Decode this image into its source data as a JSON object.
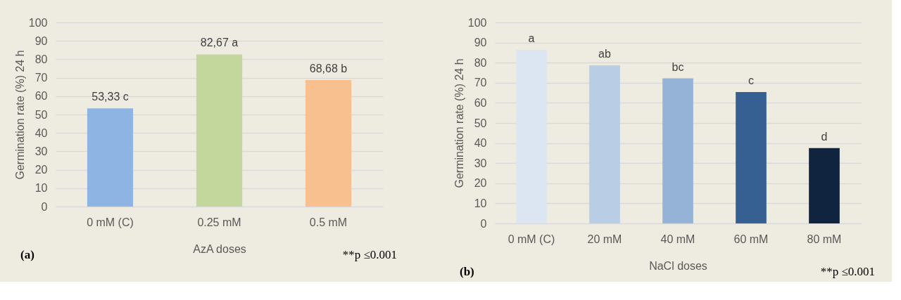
{
  "chart_data": [
    {
      "type": "bar",
      "categories": [
        "0 mM (C)",
        "0.25 mM",
        "0.5 mM"
      ],
      "values": [
        53.33,
        82.67,
        68.68
      ],
      "colors": [
        "#8eb4e3",
        "#c3d69b",
        "#f8bf8f"
      ],
      "value_labels": [
        "53,33 c",
        "82,67 a",
        "68,68 b"
      ],
      "xlabel": "AzA doses",
      "ylabel": "Germination rate (%) 24 h",
      "ylim": [
        0,
        100
      ],
      "yticks": [
        0,
        10,
        20,
        30,
        40,
        50,
        60,
        70,
        80,
        90,
        100
      ],
      "grid": "y",
      "annotations": [
        "(a)",
        "**p ≤0.001"
      ]
    },
    {
      "type": "bar",
      "categories": [
        "0 mM (C)",
        "20 mM",
        "40 mM",
        "60 mM",
        "80 mM"
      ],
      "values": [
        86.4,
        78.7,
        72.2,
        65.4,
        37.5
      ],
      "colors": [
        "#dce6f2",
        "#b9cde5",
        "#95b3d7",
        "#376092",
        "#10243f"
      ],
      "value_labels": [
        "a",
        "ab",
        "bc",
        "c",
        "d"
      ],
      "xlabel": "NaCl doses",
      "ylabel": "Germination rate (%) 24 h",
      "ylim": [
        0,
        100
      ],
      "yticks": [
        0,
        10,
        20,
        30,
        40,
        50,
        60,
        70,
        80,
        90,
        100
      ],
      "grid": "y",
      "annotations": [
        "(b)",
        "**p ≤0.001"
      ]
    }
  ]
}
